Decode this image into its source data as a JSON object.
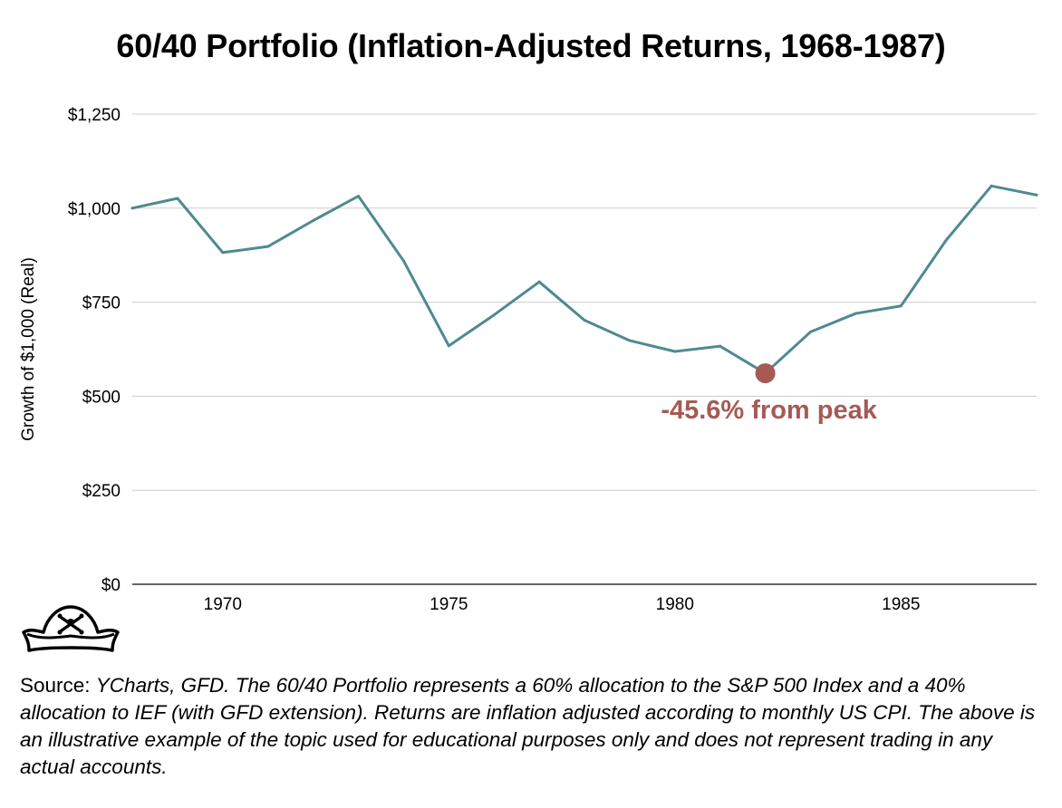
{
  "title": "60/40 Portfolio (Inflation-Adjusted Returns, 1968-1987)",
  "chart_data": {
    "type": "line",
    "title": "60/40 Portfolio (Inflation-Adjusted Returns, 1968-1987)",
    "xlabel": "",
    "ylabel": "Growth of $1,000 (Real)",
    "x": [
      1968,
      1969,
      1970,
      1971,
      1972,
      1973,
      1974,
      1975,
      1976,
      1977,
      1978,
      1979,
      1980,
      1981,
      1982,
      1983,
      1984,
      1985,
      1986,
      1987,
      1988
    ],
    "series": [
      {
        "name": "",
        "color": "#4e8a91",
        "values": [
          1000,
          1026,
          882,
          898,
          967,
          1032,
          860,
          634,
          716,
          804,
          702,
          648,
          619,
          633,
          561,
          671,
          720,
          740,
          915,
          1059,
          1035
        ]
      }
    ],
    "xlim": [
      1968,
      1988
    ],
    "ylim": [
      0,
      1250
    ],
    "y_ticks": [
      0,
      250,
      500,
      750,
      1000,
      1250
    ],
    "y_tick_labels": [
      "$0",
      "$250",
      "$500",
      "$750",
      "$1,000",
      "$1,250"
    ],
    "x_ticks": [
      1970,
      1975,
      1980,
      1985
    ],
    "x_tick_labels": [
      "1970",
      "1975",
      "1980",
      "1985"
    ],
    "grid": true,
    "annotation": {
      "text": "-45.6% from peak",
      "x": 1982,
      "y": 561,
      "color": "#a65a55"
    }
  },
  "source": {
    "lead": "Source: ",
    "body": "YCharts, GFD. The 60/40 Portfolio represents a 60% allocation to the S&P 500 Index and a 40% allocation to IEF (with GFD extension). Returns are inflation adjusted according to monthly US CPI. The above is an illustrative example of the topic used for educational purposes only and does not represent trading in any actual accounts."
  },
  "logo": {
    "icon": "pirate-hat-icon"
  }
}
